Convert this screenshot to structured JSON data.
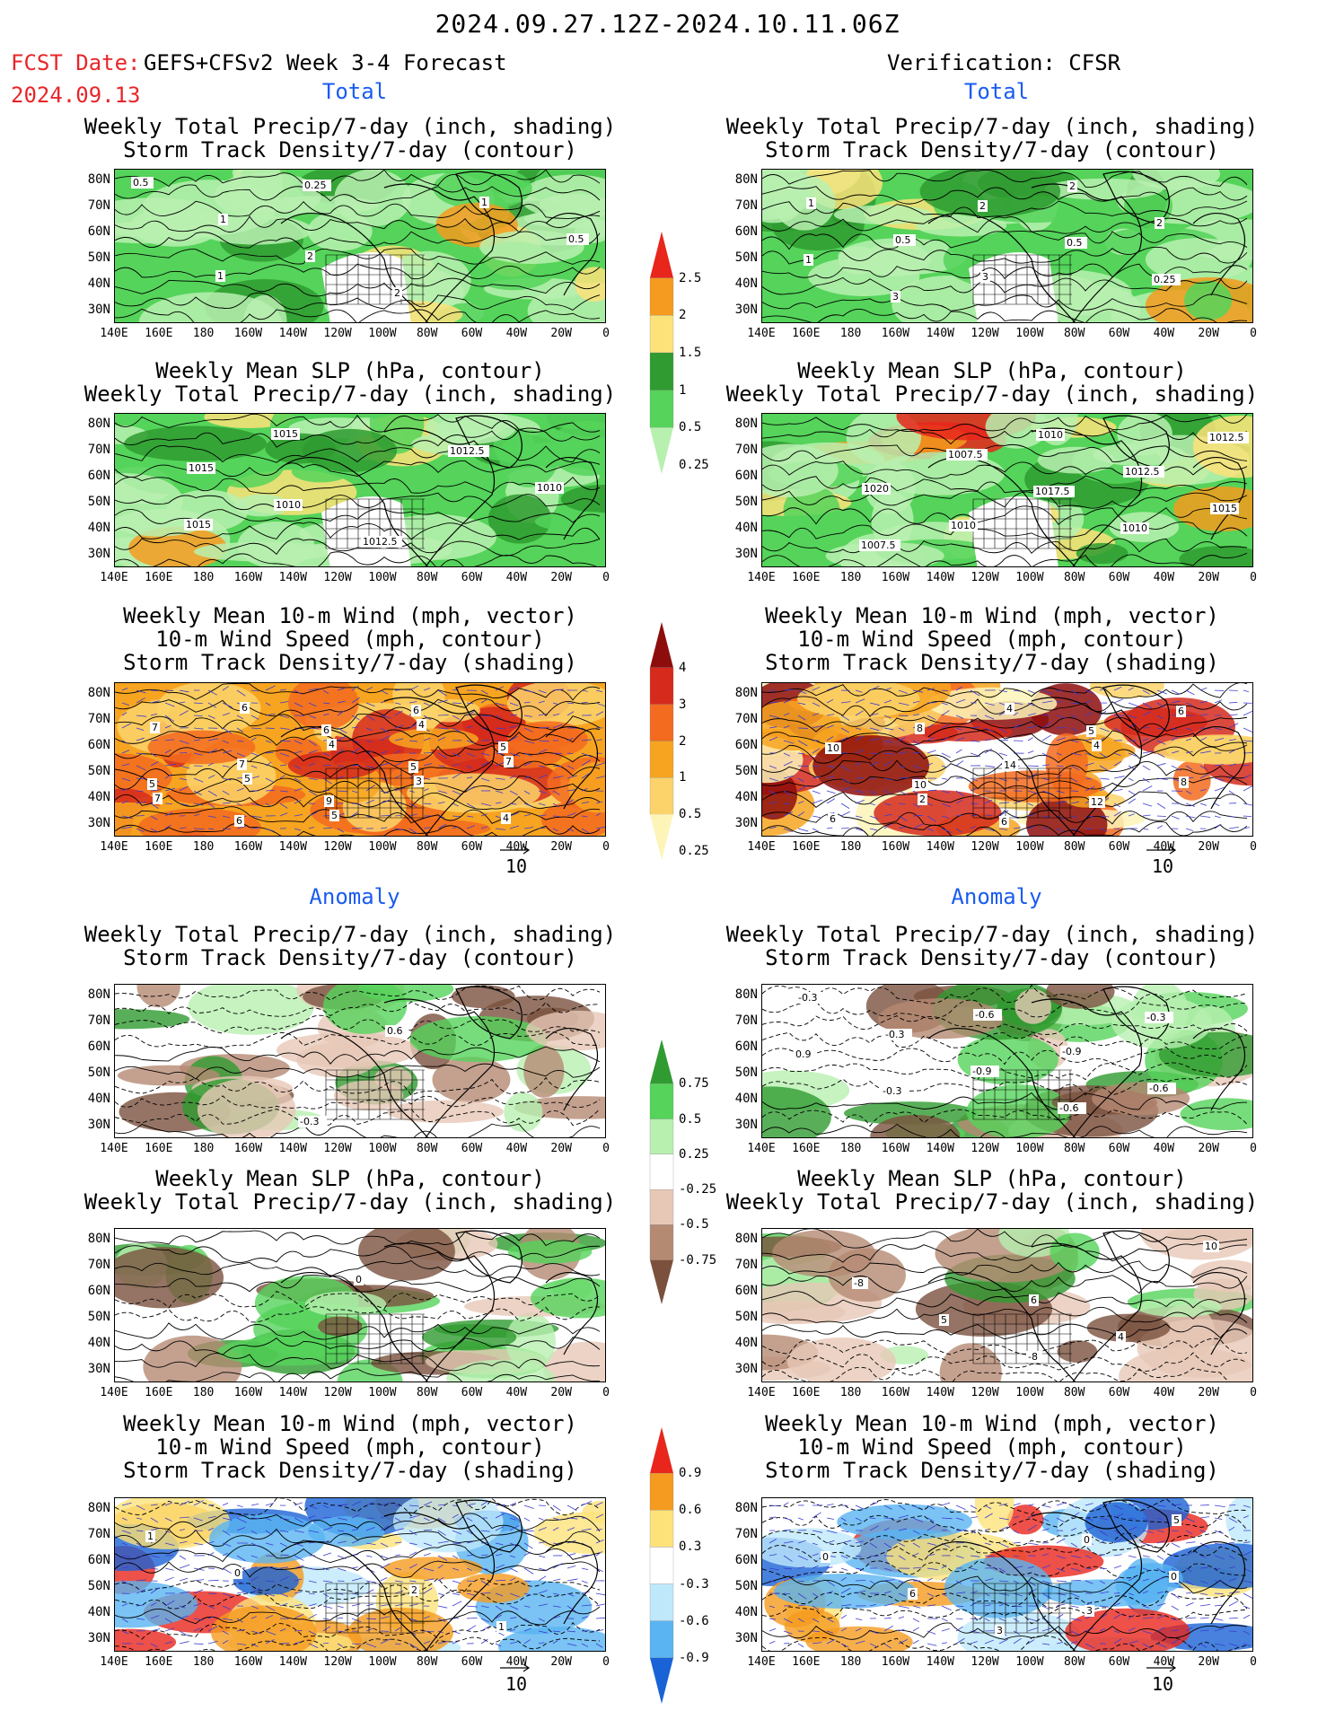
{
  "header": {
    "period": "2024.09.27.12Z-2024.10.11.06Z",
    "fcst_label": "FCST Date:",
    "fcst_model": "GEFS+CFSv2 Week 3-4 Forecast",
    "fcst_date": "2024.09.13",
    "verification": "Verification: CFSR"
  },
  "sections": {
    "total_left": "Total",
    "total_right": "Total",
    "anomaly_left": "Anomaly",
    "anomaly_right": "Anomaly"
  },
  "panel_titles": {
    "precip_storm": "Weekly Total Precip/7-day (inch, shading)\nStorm Track Density/7-day (contour)",
    "slp_precip": "Weekly Mean SLP (hPa, contour)\nWeekly Total Precip/7-day (inch, shading)",
    "wind": "Weekly Mean 10-m Wind (mph, vector)\n10-m Wind Speed (mph, contour)\nStorm Track Density/7-day (shading)"
  },
  "axes": {
    "lat_labels": [
      "80N",
      "70N",
      "60N",
      "50N",
      "40N",
      "30N"
    ],
    "lon_labels": [
      "140E",
      "160E",
      "180",
      "160W",
      "140W",
      "120W",
      "100W",
      "80W",
      "60W",
      "40W",
      "20W",
      "0"
    ]
  },
  "colorbars": {
    "precip_total": {
      "labels": [
        "2.5",
        "2",
        "1.5",
        "1",
        "0.5",
        "0.25"
      ],
      "colors": [
        "#e8261c",
        "#f59b1f",
        "#fde27a",
        "#2f9b30",
        "#55d35a",
        "#b8f0b0"
      ]
    },
    "storm_total": {
      "labels": [
        "4",
        "3",
        "2",
        "1",
        "0.5",
        "0.25"
      ],
      "colors": [
        "#8d0d0d",
        "#d52a1c",
        "#f36b1f",
        "#f7a421",
        "#fbd36a",
        "#fdf5b8"
      ]
    },
    "precip_anom": {
      "labels": [
        "0.75",
        "0.5",
        "0.25",
        "-0.25",
        "-0.5",
        "-0.75"
      ],
      "colors": [
        "#2f9b30",
        "#55d35a",
        "#b8f0b0",
        "#ffffff",
        "#e7c8b6",
        "#b58a73",
        "#7b513e"
      ]
    },
    "storm_anom": {
      "labels": [
        "0.9",
        "0.6",
        "0.3",
        "-0.3",
        "-0.6",
        "-0.9"
      ],
      "colors": [
        "#e8261c",
        "#f59b1f",
        "#fde27a",
        "#ffffff",
        "#bfe8fb",
        "#59b4f1",
        "#1a63d6"
      ]
    }
  },
  "vector_ref": "10",
  "contour_labels": {
    "p1": [
      "0.5",
      "1",
      "2",
      "2",
      "1",
      "0.5",
      "1",
      "0.25"
    ],
    "p2": [
      "1",
      "0.5",
      "3",
      "2",
      "2",
      "1",
      "3",
      "2",
      "0.5",
      "0.25"
    ],
    "p3": [
      "1015",
      "1010",
      "1012.5",
      "1012.5",
      "1010",
      "1015",
      "1015"
    ],
    "p4": [
      "1020",
      "1010",
      "1010",
      "1012.5",
      "1015",
      "1007.5",
      "1007.5",
      "1017.5",
      "1010",
      "1012.5"
    ],
    "p5": [
      "5",
      "5",
      "4",
      "7",
      "7",
      "6",
      "4",
      "3",
      "4",
      "7",
      "7",
      "9",
      "6",
      "5",
      "5",
      "6",
      "6",
      "5"
    ],
    "p6": [
      "2",
      "4",
      "4",
      "8",
      "6",
      "8",
      "14",
      "12",
      "6",
      "10",
      "10",
      "6",
      "5"
    ],
    "p7": [
      "-0.3",
      "0.6"
    ],
    "p8": [
      "-0.6",
      "-0.9",
      "-0.6",
      "-0.3",
      "-0.3",
      "-0.9",
      "-0.6",
      "-0.3",
      "0.9",
      "-0.3"
    ],
    "p9": [
      "0"
    ],
    "p10": [
      "6",
      "4",
      "10",
      "-8",
      "5",
      "-8"
    ],
    "p11": [
      "2",
      "1",
      "1",
      "0"
    ],
    "p12": [
      "3",
      "5",
      "0",
      "6",
      "3",
      "0",
      "0"
    ]
  }
}
